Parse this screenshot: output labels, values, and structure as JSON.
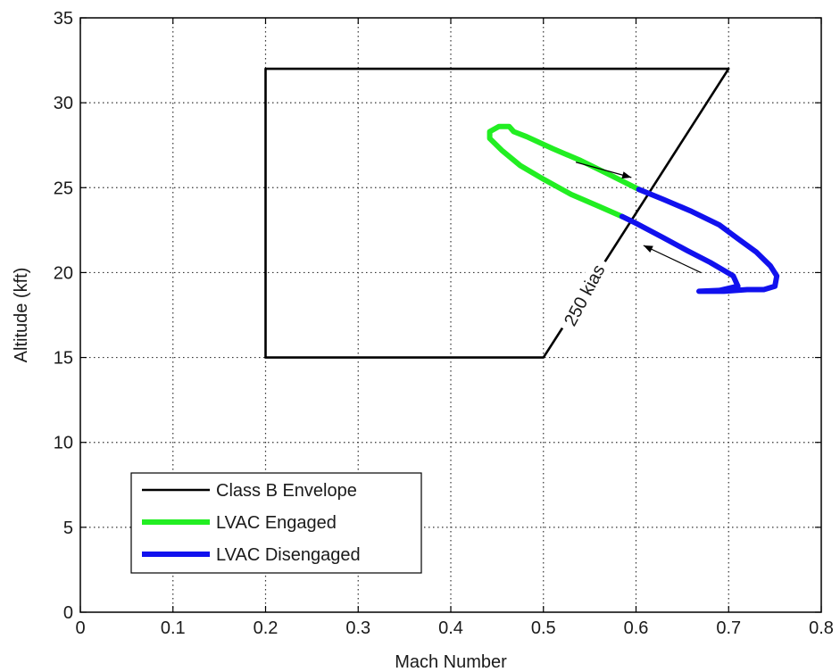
{
  "chart_data": {
    "type": "line",
    "xlabel": "Mach Number",
    "ylabel": "Altitude (kft)",
    "xlim": [
      0,
      0.8
    ],
    "ylim": [
      0,
      35
    ],
    "xticks": [
      0,
      0.1,
      0.2,
      0.3,
      0.4,
      0.5,
      0.6,
      0.7,
      0.8
    ],
    "yticks": [
      0,
      5,
      10,
      15,
      20,
      25,
      30,
      35
    ],
    "xtick_labels": [
      "0",
      "0.1",
      "0.2",
      "0.3",
      "0.4",
      "0.5",
      "0.6",
      "0.7",
      "0.8"
    ],
    "ytick_labels": [
      "0",
      "5",
      "10",
      "15",
      "20",
      "25",
      "30",
      "35"
    ],
    "grid": true,
    "legend_position": "bottom-left",
    "colors": {
      "envelope": "#000000",
      "engaged": "#22ee22",
      "disengaged": "#1111ee",
      "grid": "#333333"
    },
    "series": [
      {
        "name": "Class B Envelope",
        "color": "#000000",
        "x": [
          0.2,
          0.2,
          0.5,
          0.7,
          0.2
        ],
        "y": [
          15,
          32,
          15,
          32,
          32
        ],
        "path": [
          [
            0.2,
            15
          ],
          [
            0.2,
            32
          ],
          [
            0.7,
            32
          ],
          [
            0.5,
            15
          ],
          [
            0.2,
            15
          ]
        ]
      },
      {
        "name": "LVAC Engaged",
        "color": "#22ee22",
        "path": [
          [
            0.585,
            23.3
          ],
          [
            0.56,
            23.9
          ],
          [
            0.53,
            24.6
          ],
          [
            0.5,
            25.5
          ],
          [
            0.475,
            26.3
          ],
          [
            0.455,
            27.2
          ],
          [
            0.442,
            27.9
          ],
          [
            0.442,
            28.3
          ],
          [
            0.452,
            28.6
          ],
          [
            0.463,
            28.6
          ],
          [
            0.468,
            28.3
          ],
          [
            0.482,
            28.0
          ],
          [
            0.51,
            27.3
          ],
          [
            0.54,
            26.6
          ],
          [
            0.57,
            25.8
          ],
          [
            0.603,
            24.9
          ]
        ]
      },
      {
        "name": "LVAC Disengaged",
        "color": "#1111ee",
        "path": [
          [
            0.603,
            24.9
          ],
          [
            0.63,
            24.3
          ],
          [
            0.66,
            23.6
          ],
          [
            0.69,
            22.8
          ],
          [
            0.71,
            22.0
          ],
          [
            0.73,
            21.2
          ],
          [
            0.745,
            20.4
          ],
          [
            0.752,
            19.8
          ],
          [
            0.75,
            19.2
          ],
          [
            0.738,
            19.0
          ],
          [
            0.72,
            19.0
          ],
          [
            0.695,
            18.9
          ],
          [
            0.668,
            18.9
          ],
          [
            0.69,
            18.95
          ],
          [
            0.71,
            19.2
          ],
          [
            0.705,
            19.8
          ],
          [
            0.68,
            20.6
          ],
          [
            0.655,
            21.3
          ],
          [
            0.628,
            22.1
          ],
          [
            0.6,
            22.9
          ],
          [
            0.585,
            23.3
          ]
        ]
      }
    ],
    "annotations": [
      {
        "text": "250 kias",
        "x": 0.55,
        "y": 18.5,
        "rotation": -62
      }
    ],
    "arrows": [
      {
        "from": [
          0.535,
          26.5
        ],
        "to": [
          0.595,
          25.6
        ]
      },
      {
        "from": [
          0.67,
          20.0
        ],
        "to": [
          0.608,
          21.6
        ]
      }
    ]
  }
}
